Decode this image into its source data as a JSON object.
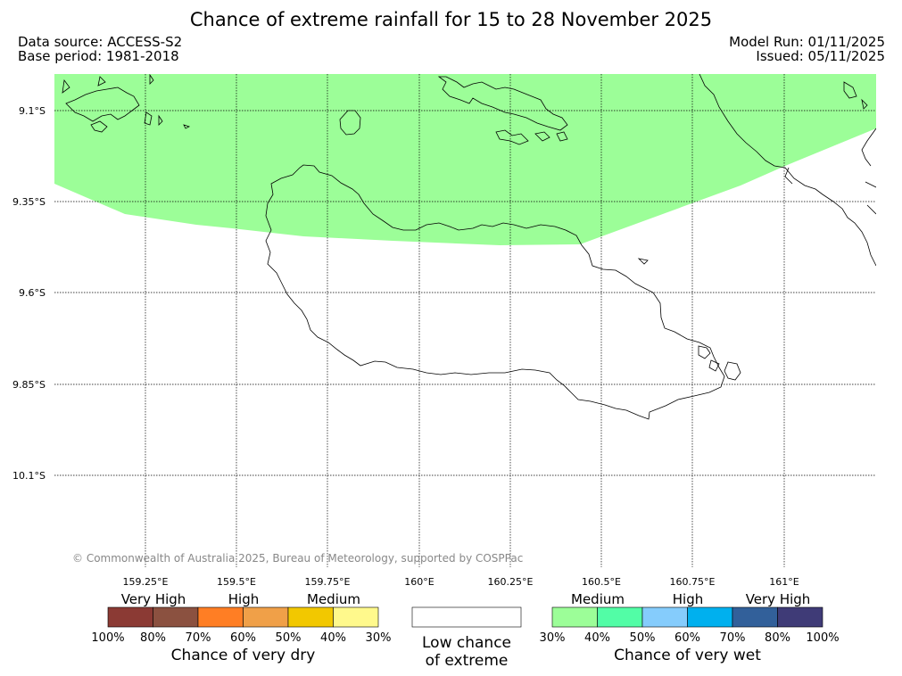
{
  "header": {
    "title": "Chance of extreme rainfall for 15 to 28 November 2025",
    "data_source": "Data source: ACCESS-S2",
    "base_period": "Base period: 1981-2018",
    "model_run": "Model Run: 01/11/2025",
    "issued": "Issued: 05/11/2025"
  },
  "map": {
    "lat_labels": [
      "9.1°S",
      "9.35°S",
      "9.6°S",
      "9.85°S",
      "10.1°S"
    ],
    "lon_labels": [
      "159.25°E",
      "159.5°E",
      "159.75°E",
      "160°E",
      "160.25°E",
      "160.5°E",
      "160.75°E",
      "161°E"
    ],
    "wet_medium_color": "#9cfe98",
    "copyright": "© Commonwealth of Australia 2025, Bureau of Meteorology, supported by COSPPac"
  },
  "legend": {
    "dry": {
      "categories": [
        "Very High",
        "High",
        "Medium"
      ],
      "colors": [
        "#8b3a34",
        "#8b5140",
        "#ff7e24",
        "#f0a048",
        "#f2c800",
        "#fff98c"
      ],
      "ticks": [
        "100%",
        "80%",
        "70%",
        "60%",
        "50%",
        "40%",
        "30%"
      ],
      "caption": "Chance of very dry"
    },
    "low": {
      "caption_line1": "Low chance",
      "caption_line2": "of extreme",
      "color": "#ffffff"
    },
    "wet": {
      "categories": [
        "Medium",
        "High",
        "Very High"
      ],
      "colors": [
        "#9cfe98",
        "#52fda6",
        "#85ccfc",
        "#00b0ee",
        "#32609a",
        "#3f3b77"
      ],
      "ticks": [
        "30%",
        "40%",
        "50%",
        "60%",
        "70%",
        "80%",
        "100%"
      ],
      "caption": "Chance of very wet"
    }
  }
}
